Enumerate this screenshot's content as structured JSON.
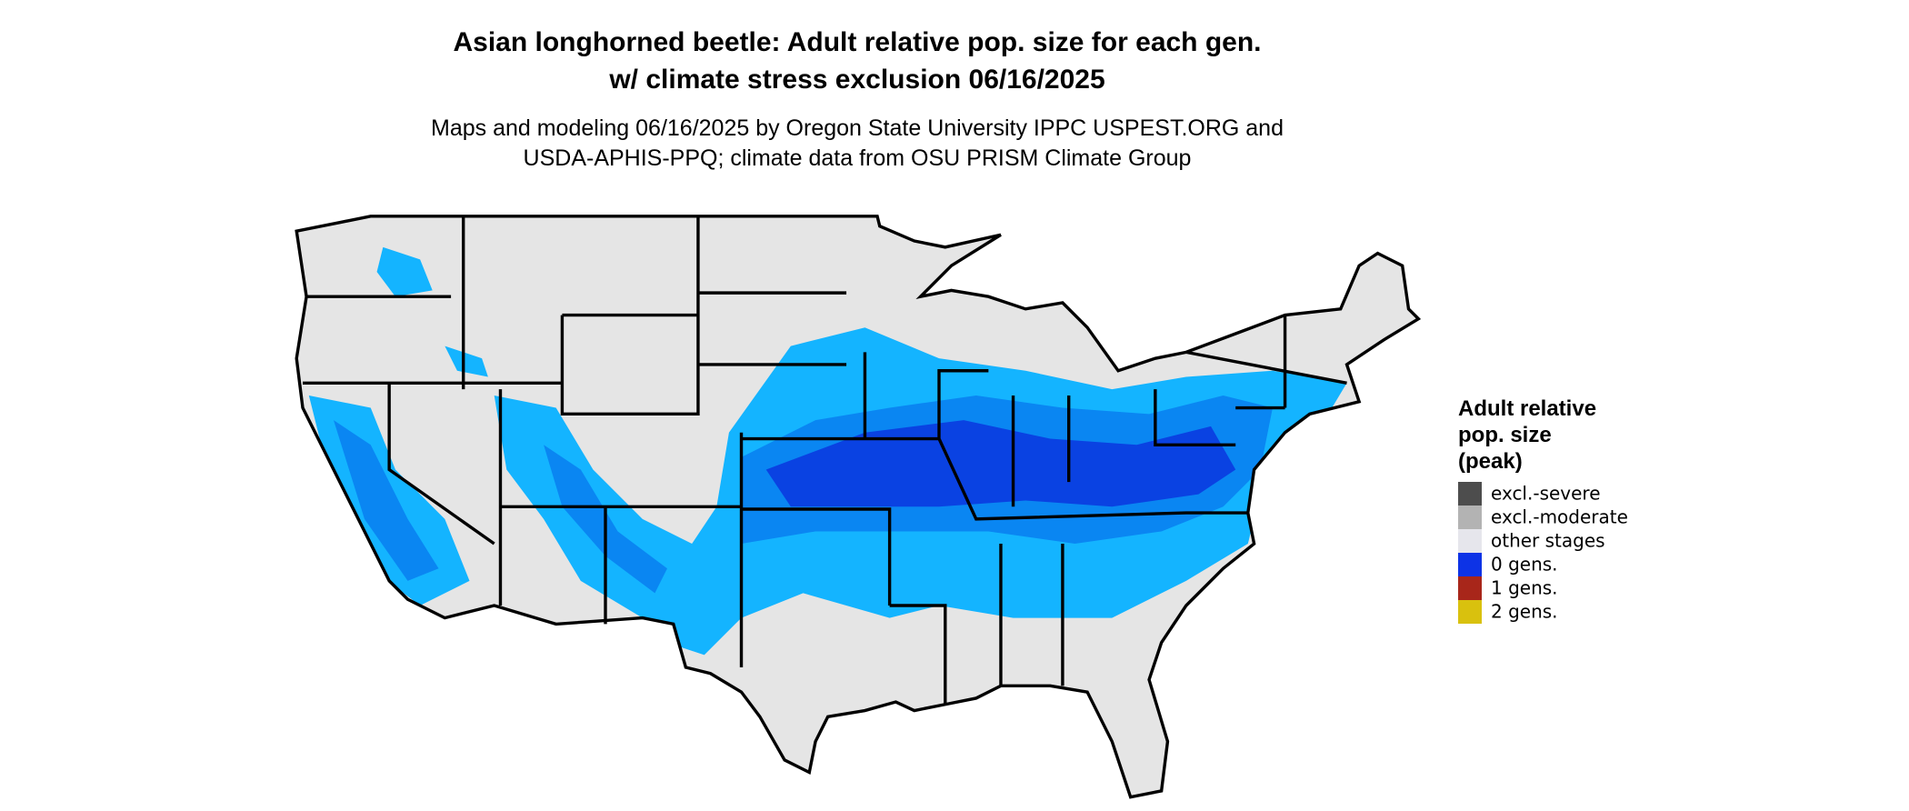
{
  "header": {
    "title_lines": [
      "Asian longhorned beetle: Adult relative pop. size for each gen.",
      "w/ climate stress exclusion 06/16/2025"
    ],
    "subtitle_lines": [
      "Maps and modeling 06/16/2025 by Oregon State University IPPC USPEST.ORG and",
      "USDA-APHIS-PPQ; climate data from OSU PRISM Climate Group"
    ]
  },
  "legend": {
    "title_lines": [
      "Adult relative",
      "pop. size",
      "(peak)"
    ],
    "items": [
      {
        "label": "excl.-severe",
        "color": "#4d4d4d"
      },
      {
        "label": "excl.-moderate",
        "color": "#b3b3b3"
      },
      {
        "label": "other stages",
        "color": "#e6e6ec"
      },
      {
        "label": "0 gens.",
        "color": "#0d33e6"
      },
      {
        "label": "1 gens.",
        "color": "#a8261a"
      },
      {
        "label": "2 gens.",
        "color": "#d9c10e"
      }
    ]
  }
}
